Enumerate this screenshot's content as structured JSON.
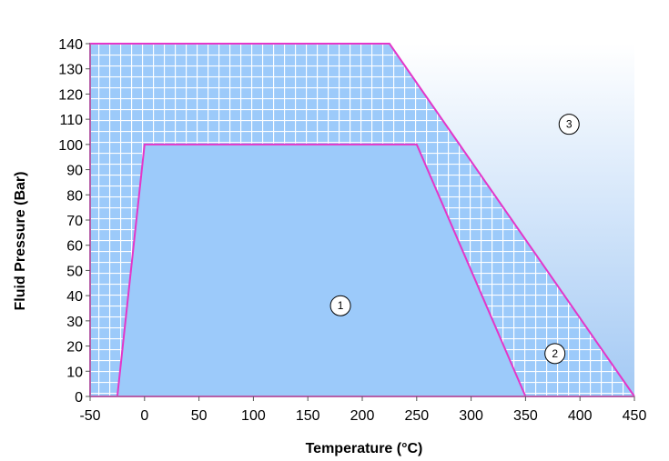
{
  "chart_data": {
    "type": "area",
    "title": "",
    "xlabel": "Temperature (°C)",
    "ylabel": "Fluid Pressure (Bar)",
    "xlim": [
      -50,
      450
    ],
    "ylim": [
      0,
      140
    ],
    "x_ticks": [
      -50,
      0,
      50,
      100,
      150,
      200,
      250,
      300,
      350,
      400,
      450
    ],
    "y_ticks": [
      0,
      10,
      20,
      30,
      40,
      50,
      60,
      70,
      80,
      90,
      100,
      110,
      120,
      130,
      140
    ],
    "grid": true,
    "regions": [
      {
        "label": "1",
        "boundary": [
          [
            -25,
            0
          ],
          [
            0,
            100
          ],
          [
            250,
            100
          ],
          [
            350,
            0
          ]
        ],
        "label_at": [
          180,
          36
        ],
        "fill": "#9ccafa"
      },
      {
        "label": "2",
        "boundary": [
          [
            -50,
            0
          ],
          [
            -50,
            140
          ],
          [
            225,
            140
          ],
          [
            450,
            0
          ]
        ],
        "label_at": [
          377,
          17
        ],
        "fill": "#9ccafa",
        "pattern": "grid"
      },
      {
        "label": "3",
        "label_at": [
          390,
          108
        ],
        "fill": "gradient"
      }
    ],
    "boundary_color": "#e436c9"
  }
}
